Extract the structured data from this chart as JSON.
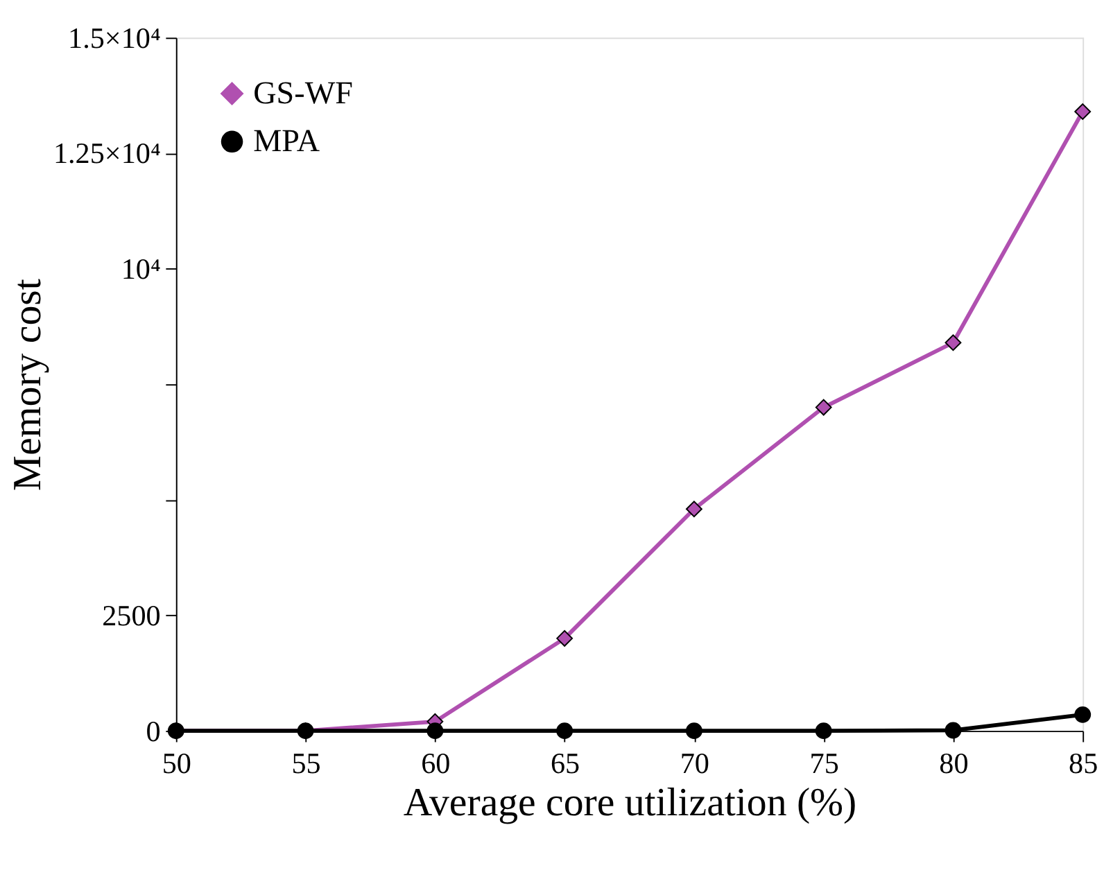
{
  "chart_data": {
    "type": "line",
    "xlabel": "Average core utilization (%)",
    "ylabel": "Memory cost",
    "x": [
      50,
      55,
      60,
      65,
      70,
      75,
      80,
      85
    ],
    "series": [
      {
        "name": "GS-WF",
        "color": "#b050b0",
        "marker": "diamond",
        "values": [
          0,
          0,
          200,
          2000,
          4800,
          7000,
          8400,
          13400
        ]
      },
      {
        "name": "MPA",
        "color": "#000000",
        "marker": "circle",
        "values": [
          0,
          0,
          0,
          0,
          0,
          0,
          10,
          350
        ]
      }
    ],
    "xlim": [
      50,
      85
    ],
    "xticks": [
      50,
      55,
      60,
      65,
      70,
      75,
      80,
      85
    ],
    "ylim": [
      0,
      15000
    ],
    "yticks": [
      0,
      2500,
      {
        "value": 5000,
        "label": null
      },
      {
        "value": 7500,
        "label": null
      },
      {
        "value": 10000,
        "label": "10⁴"
      },
      {
        "value": 12500,
        "label": "1.25×10⁴"
      },
      {
        "value": 15000,
        "label": "1.5×10⁴"
      }
    ],
    "legend": "top left",
    "grid": false,
    "line_style": "solid"
  }
}
